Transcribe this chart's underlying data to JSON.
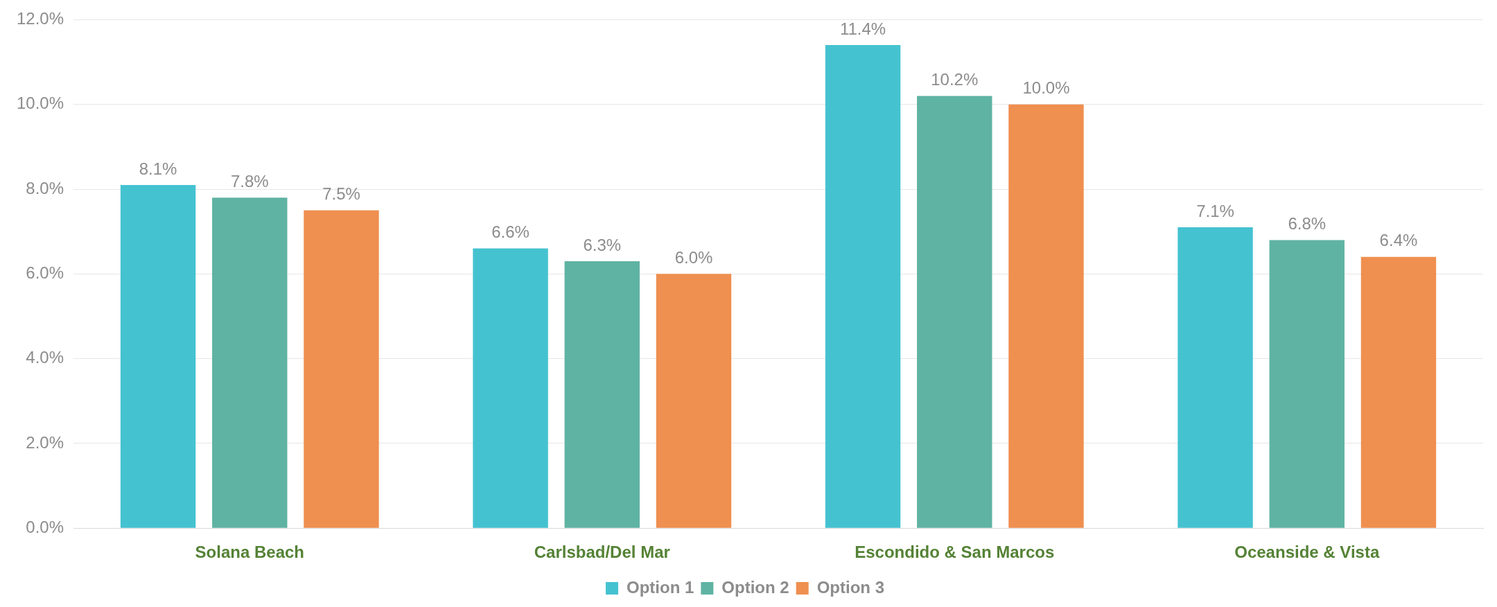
{
  "chart_data": {
    "type": "bar",
    "categories": [
      "Solana Beach",
      "Carlsbad/Del Mar",
      "Escondido & San Marcos",
      "Oceanside & Vista"
    ],
    "series": [
      {
        "name": "Option 1",
        "color": "#45c2d0",
        "values": [
          8.1,
          6.6,
          11.4,
          7.1
        ]
      },
      {
        "name": "Option 2",
        "color": "#5fb3a3",
        "values": [
          7.8,
          6.3,
          10.2,
          6.8
        ]
      },
      {
        "name": "Option 3",
        "color": "#ef8f50",
        "values": [
          7.5,
          6.0,
          10.0,
          6.4
        ]
      }
    ],
    "ylim": [
      0,
      12
    ],
    "yticks": [
      {
        "value": 0,
        "label": "0.0%"
      },
      {
        "value": 2,
        "label": "2.0%"
      },
      {
        "value": 4,
        "label": "4.0%"
      },
      {
        "value": 6,
        "label": "6.0%"
      },
      {
        "value": 8,
        "label": "8.0%"
      },
      {
        "value": 10,
        "label": "10.0%"
      },
      {
        "value": 12,
        "label": "12.0%"
      }
    ],
    "value_labels": [
      [
        "8.1%",
        "6.6%",
        "11.4%",
        "7.1%"
      ],
      [
        "7.8%",
        "6.3%",
        "10.2%",
        "6.8%"
      ],
      [
        "7.5%",
        "6.0%",
        "10.0%",
        "6.4%"
      ]
    ],
    "grid": "y",
    "legend": "bottom"
  }
}
